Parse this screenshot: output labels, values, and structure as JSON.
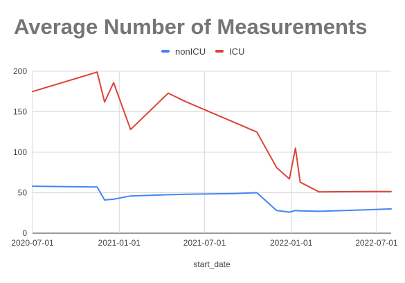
{
  "chart_data": {
    "type": "line",
    "title": "Average Number of Measurements",
    "xlabel": "start_date",
    "ylabel": "",
    "ylim": [
      0,
      200
    ],
    "yticks": [
      0,
      50,
      100,
      150,
      200
    ],
    "xlim": [
      "2020-07-01",
      "2022-08-01"
    ],
    "xticks": [
      "2020-07-01",
      "2021-01-01",
      "2021-07-01",
      "2022-01-01",
      "2022-07-01"
    ],
    "grid": true,
    "legend_position": "top",
    "series": [
      {
        "name": "nonICU",
        "color": "#4285f4",
        "points": [
          {
            "x": "2020-07-01",
            "y": 58
          },
          {
            "x": "2020-11-15",
            "y": 57
          },
          {
            "x": "2020-12-01",
            "y": 41
          },
          {
            "x": "2020-12-20",
            "y": 42
          },
          {
            "x": "2021-01-25",
            "y": 46
          },
          {
            "x": "2021-04-15",
            "y": 47.5
          },
          {
            "x": "2021-05-20",
            "y": 48
          },
          {
            "x": "2021-09-01",
            "y": 49
          },
          {
            "x": "2021-10-20",
            "y": 50
          },
          {
            "x": "2021-12-01",
            "y": 28
          },
          {
            "x": "2021-12-15",
            "y": 27
          },
          {
            "x": "2021-12-28",
            "y": 26
          },
          {
            "x": "2022-01-10",
            "y": 28
          },
          {
            "x": "2022-01-20",
            "y": 27.5
          },
          {
            "x": "2022-03-01",
            "y": 27
          },
          {
            "x": "2022-06-15",
            "y": 29
          },
          {
            "x": "2022-08-01",
            "y": 30
          }
        ]
      },
      {
        "name": "ICU",
        "color": "#db4437",
        "points": [
          {
            "x": "2020-07-01",
            "y": 175
          },
          {
            "x": "2020-11-15",
            "y": 199
          },
          {
            "x": "2020-12-01",
            "y": 162
          },
          {
            "x": "2020-12-20",
            "y": 186
          },
          {
            "x": "2021-01-25",
            "y": 128
          },
          {
            "x": "2021-04-15",
            "y": 173
          },
          {
            "x": "2021-05-20",
            "y": 163
          },
          {
            "x": "2021-10-20",
            "y": 125
          },
          {
            "x": "2021-12-01",
            "y": 81
          },
          {
            "x": "2021-12-28",
            "y": 67
          },
          {
            "x": "2022-01-10",
            "y": 105
          },
          {
            "x": "2022-01-20",
            "y": 63
          },
          {
            "x": "2022-03-01",
            "y": 51
          },
          {
            "x": "2022-06-15",
            "y": 51.5
          },
          {
            "x": "2022-08-01",
            "y": 51.5
          }
        ]
      }
    ]
  }
}
